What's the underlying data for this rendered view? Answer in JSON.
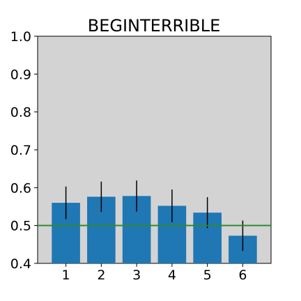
{
  "chart_data": {
    "type": "bar",
    "title": "BEGINTERRIBLE",
    "xlabel": "",
    "ylabel": "",
    "categories": [
      "1",
      "2",
      "3",
      "4",
      "5",
      "6"
    ],
    "values": [
      0.56,
      0.576,
      0.578,
      0.552,
      0.534,
      0.473
    ],
    "errors": [
      0.043,
      0.04,
      0.041,
      0.043,
      0.041,
      0.04
    ],
    "ylim": [
      0.4,
      1.0
    ],
    "yticks": [
      "0.4",
      "0.5",
      "0.6",
      "0.7",
      "0.8",
      "0.9",
      "1.0"
    ],
    "reference_line": 0.5,
    "grid": false,
    "colors": {
      "bar": "#1f77b4",
      "error_bar": "#000000",
      "reference_line": "#2e8b2e",
      "plot_background": "#d3d3d3",
      "axes": "#000000"
    }
  }
}
